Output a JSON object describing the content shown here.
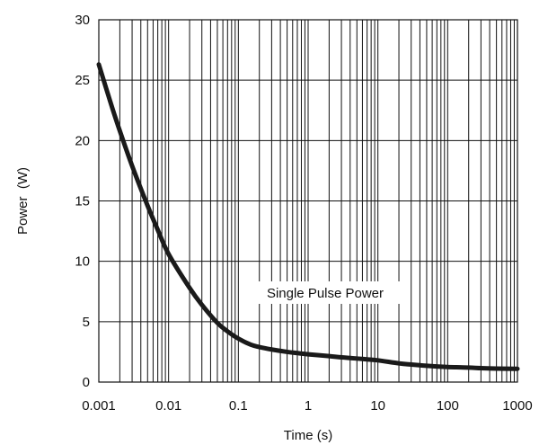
{
  "chart_data": {
    "type": "line",
    "title": "",
    "xlabel": "Time (s)",
    "ylabel": "Power  (W)",
    "x_scale": "log",
    "xlim": [
      0.001,
      1000
    ],
    "ylim": [
      0,
      30
    ],
    "grid": true,
    "x_ticks": [
      "0.001",
      "0.01",
      "0.1",
      "1",
      "10",
      "100",
      "1000"
    ],
    "y_ticks": [
      "0",
      "5",
      "10",
      "15",
      "20",
      "25",
      "30"
    ],
    "annotation": "Single Pulse Power",
    "series": [
      {
        "color": "#1a1a1a",
        "x": [
          0.001,
          0.0015,
          0.002,
          0.003,
          0.005,
          0.007,
          0.01,
          0.02,
          0.03,
          0.05,
          0.07,
          0.1,
          0.15,
          0.2,
          0.3,
          0.5,
          0.7,
          1,
          2,
          3,
          5,
          7,
          10,
          20,
          30,
          50,
          100,
          200,
          300,
          500,
          1000
        ],
        "y": [
          26.3,
          23.0,
          20.8,
          17.9,
          14.6,
          12.6,
          10.6,
          7.8,
          6.4,
          4.9,
          4.2,
          3.6,
          3.1,
          2.9,
          2.7,
          2.5,
          2.4,
          2.3,
          2.15,
          2.05,
          1.95,
          1.88,
          1.8,
          1.55,
          1.45,
          1.35,
          1.25,
          1.2,
          1.15,
          1.12,
          1.1
        ]
      }
    ]
  }
}
